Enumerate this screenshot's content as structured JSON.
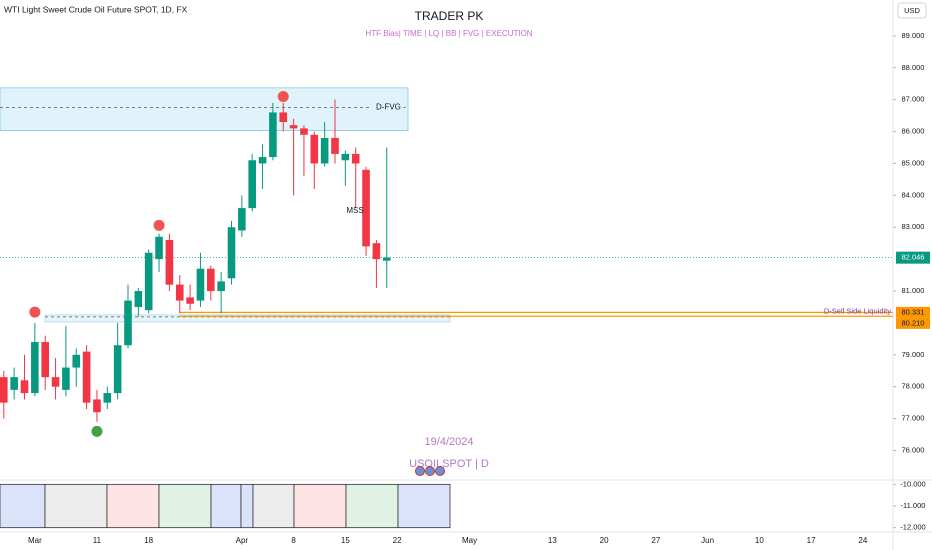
{
  "chart_data": {
    "type": "candlestick",
    "title": "TRADER PK",
    "subtitle": "HTF Bias| TIME  |  LQ  |  BB  |  FVG  | EXECUTION",
    "symbol_title": "WTI Light Sweet Crude Oil Future SPOT, 1D, FX",
    "currency": "USD",
    "watermark_date": "19/4/2024",
    "watermark_symbol": "USOILSPOT | D",
    "up_color": "#089981",
    "down_color": "#f23645",
    "grid": false,
    "ylim": [
      75.2,
      90.125
    ],
    "yticks": [
      {
        "value": 76,
        "label": "76.000"
      },
      {
        "value": 77,
        "label": "77.000"
      },
      {
        "value": 78,
        "label": "78.000"
      },
      {
        "value": 79,
        "label": "79.000"
      },
      {
        "value": 81,
        "label": "81.000"
      },
      {
        "value": 83,
        "label": "83.000"
      },
      {
        "value": 84,
        "label": "84.000"
      },
      {
        "value": 85,
        "label": "85.000"
      },
      {
        "value": 86,
        "label": "86.000"
      },
      {
        "value": 87,
        "label": "87.000"
      },
      {
        "value": 88,
        "label": "88.000"
      },
      {
        "value": 89,
        "label": "89.000"
      }
    ],
    "categories": [
      null,
      null,
      null,
      "Mar",
      null,
      null,
      null,
      null,
      null,
      "11",
      null,
      null,
      null,
      null,
      "18",
      null,
      null,
      null,
      null,
      null,
      null,
      null,
      null,
      "Apr",
      null,
      null,
      null,
      null,
      "8",
      null,
      null,
      null,
      null,
      "15",
      null,
      null,
      null,
      null,
      "22",
      null,
      null,
      null,
      null,
      null,
      null,
      "May",
      null,
      null,
      null,
      null,
      null,
      null,
      null,
      "13",
      null,
      null,
      null,
      null,
      "20",
      null,
      null,
      null,
      null,
      "27",
      null,
      null,
      null,
      null,
      "Jun",
      null,
      null,
      null,
      null,
      "10",
      null,
      null,
      null,
      null,
      "17",
      null,
      null,
      null,
      null,
      "24",
      null,
      null
    ],
    "open": [
      78.3,
      77.9,
      78.2,
      77.8,
      79.4,
      78.3,
      77.9,
      78.6,
      79.1,
      77.6,
      77.5,
      77.8,
      79.3,
      80.5,
      80.4,
      82.0,
      82.6,
      81.2,
      80.8,
      80.7,
      81.7,
      81.0,
      81.4,
      82.9,
      83.6,
      85.0,
      85.2,
      86.6,
      86.2,
      86.1,
      85.9,
      85.0,
      85.8,
      85.1,
      85.3,
      84.8,
      82.5,
      81.95,
      null,
      null,
      null,
      null,
      null,
      null,
      null,
      null,
      null,
      null,
      null,
      null,
      null,
      null,
      null,
      null,
      null,
      null,
      null,
      null,
      null,
      null,
      null,
      null,
      null,
      null,
      null,
      null,
      null,
      null,
      null,
      null,
      null,
      null,
      null,
      null,
      null,
      null,
      null,
      null,
      null,
      null,
      null,
      null,
      null,
      null,
      null,
      null
    ],
    "high": [
      78.5,
      78.6,
      79.0,
      80.0,
      79.6,
      78.9,
      79.9,
      79.2,
      79.3,
      77.9,
      78.0,
      80.0,
      81.2,
      81.1,
      82.3,
      82.8,
      82.8,
      81.5,
      81.2,
      82.2,
      81.8,
      81.6,
      83.2,
      84.0,
      85.3,
      85.6,
      86.9,
      86.9,
      86.4,
      86.2,
      86.0,
      86.3,
      87.0,
      85.4,
      85.5,
      84.9,
      82.6,
      85.5,
      null,
      null,
      null,
      null,
      null,
      null,
      null,
      null,
      null,
      null,
      null,
      null,
      null,
      null,
      null,
      null,
      null,
      null,
      null,
      null,
      null,
      null,
      null,
      null,
      null,
      null,
      null,
      null,
      null,
      null,
      null,
      null,
      null,
      null,
      null,
      null,
      null,
      null,
      null,
      null,
      null,
      null,
      null,
      null,
      null,
      null,
      null,
      null
    ],
    "low": [
      77.0,
      77.6,
      77.6,
      77.7,
      77.9,
      77.6,
      77.7,
      78.0,
      77.3,
      76.9,
      77.3,
      77.6,
      79.2,
      80.2,
      80.3,
      81.6,
      81.0,
      80.3,
      80.4,
      80.5,
      80.7,
      80.3,
      81.2,
      82.7,
      83.5,
      84.2,
      85.1,
      86.0,
      84.0,
      84.6,
      84.2,
      84.9,
      85.0,
      84.3,
      83.6,
      82.1,
      81.1,
      81.1,
      null,
      null,
      null,
      null,
      null,
      null,
      null,
      null,
      null,
      null,
      null,
      null,
      null,
      null,
      null,
      null,
      null,
      null,
      null,
      null,
      null,
      null,
      null,
      null,
      null,
      null,
      null,
      null,
      null,
      null,
      null,
      null,
      null,
      null,
      null,
      null,
      null,
      null,
      null,
      null,
      null,
      null,
      null,
      null,
      null,
      null,
      null,
      null
    ],
    "close": [
      77.5,
      78.3,
      77.8,
      79.4,
      78.3,
      78.0,
      78.6,
      79.0,
      77.5,
      77.2,
      77.8,
      79.3,
      80.7,
      81.0,
      82.2,
      82.7,
      81.2,
      80.7,
      80.6,
      81.7,
      81.0,
      81.3,
      83.0,
      83.6,
      85.1,
      85.2,
      86.6,
      86.3,
      86.1,
      85.9,
      85.0,
      85.8,
      85.3,
      85.3,
      85.0,
      82.4,
      82.0,
      82.05,
      null,
      null,
      null,
      null,
      null,
      null,
      null,
      null,
      null,
      null,
      null,
      null,
      null,
      null,
      null,
      null,
      null,
      null,
      null,
      null,
      null,
      null,
      null,
      null,
      null,
      null,
      null,
      null,
      null,
      null,
      null,
      null,
      null,
      null,
      null,
      null,
      null,
      null,
      null,
      null,
      null,
      null,
      null,
      null,
      null,
      null,
      null,
      null
    ],
    "pivot_high": [
      null,
      null,
      null,
      80.34,
      null,
      null,
      null,
      null,
      null,
      null,
      null,
      null,
      null,
      null,
      null,
      83.06,
      null,
      null,
      null,
      null,
      null,
      null,
      null,
      null,
      null,
      null,
      null,
      87.1,
      null,
      null,
      null,
      null,
      null,
      null,
      null,
      null,
      null,
      null,
      null,
      null,
      null,
      null,
      null,
      null,
      null,
      null,
      null,
      null,
      null,
      null,
      null,
      null,
      null,
      null,
      null,
      null,
      null,
      null,
      null,
      null,
      null,
      null,
      null,
      null,
      null,
      null,
      null,
      null,
      null,
      null,
      null,
      null,
      null,
      null,
      null,
      null,
      null,
      null,
      null,
      null,
      null,
      null,
      null,
      null,
      null,
      null
    ],
    "pivot_low": [
      null,
      null,
      null,
      null,
      null,
      null,
      null,
      null,
      null,
      76.6,
      null,
      null,
      null,
      null,
      null,
      null,
      null,
      null,
      null,
      null,
      null,
      null,
      null,
      null,
      null,
      null,
      null,
      null,
      null,
      null,
      null,
      null,
      null,
      null,
      null,
      null,
      null,
      null,
      null,
      null,
      null,
      null,
      null,
      null,
      null,
      null,
      null,
      null,
      null,
      null,
      null,
      null,
      null,
      null,
      null,
      null,
      null,
      null,
      null,
      null,
      null,
      null,
      null,
      null,
      null,
      null,
      null,
      null,
      null,
      null,
      null,
      null,
      null,
      null,
      null,
      null,
      null,
      null,
      null,
      null,
      null,
      null,
      null,
      null,
      null,
      null
    ],
    "last_price": 82.046,
    "fvg": {
      "label": "D-FVG -",
      "low": 86.03,
      "high": 87.37,
      "level": 86.75
    },
    "mss_label": "MSS",
    "ssl": {
      "label": "D-Sell Side Liquidity",
      "levels": [
        80.331,
        {
          "value": 80.21,
          "label": "80.210"
        }
      ],
      "zone_low": 80.03,
      "zone_high": 80.25,
      "zone_level": 80.19
    },
    "lower_pane": {
      "ylim": [
        -12.2,
        -9.8
      ],
      "yticks": [
        {
          "value": -10,
          "label": "-10.000"
        },
        {
          "value": -11,
          "label": "-11.000"
        },
        {
          "value": -12,
          "label": "-12.000"
        }
      ]
    }
  }
}
